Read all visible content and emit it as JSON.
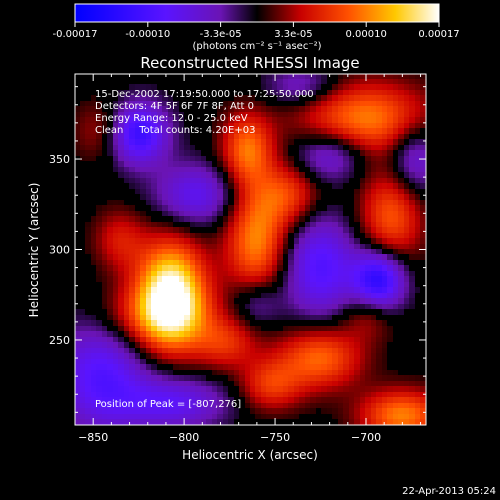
{
  "chart_data": {
    "type": "heatmap",
    "title": "Reconstructed RHESSI Image",
    "xlabel": "Heliocentric X (arcsec)",
    "ylabel": "Heliocentric Y (arcsec)",
    "xlim": [
      -860,
      -667
    ],
    "ylim": [
      203,
      397
    ],
    "xticks": [
      -850,
      -800,
      -750,
      -700
    ],
    "yticks": [
      250,
      300,
      350
    ],
    "colorbar": {
      "tick_labels": [
        "-0.00017",
        "-0.00010",
        "-3.3e-05",
        "3.3e-05",
        "0.00010",
        "0.00017"
      ],
      "unit_label": "(photons cm⁻² s⁻¹ asec⁻²)",
      "range": [
        -0.00017,
        0.00017
      ],
      "colormap": "blue-purple-black-red-orange-yellow-white"
    },
    "annotations": [
      "15-Dec-2002 17:19:50.000 to 17:25:50.000",
      "Detectors: 4F 5F 6F 7F 8F, Att 0",
      "Energy Range: 12.0 - 25.0 keV",
      "Clean     Total counts: 4.20E+03"
    ],
    "peak_label": "Position of Peak = [-807,276]",
    "peak": {
      "x": -807,
      "y": 276
    },
    "grid": false,
    "approx_sources": [
      {
        "x": -807,
        "y": 276,
        "sx": 13,
        "sy": 20,
        "amp": 1.0
      },
      {
        "x": -815,
        "y": 262,
        "sx": 22,
        "sy": 13,
        "amp": 0.42
      },
      {
        "x": -760,
        "y": 305,
        "sx": 12,
        "sy": 22,
        "amp": 0.62
      },
      {
        "x": -765,
        "y": 355,
        "sx": 10,
        "sy": 14,
        "amp": 0.55
      },
      {
        "x": -742,
        "y": 330,
        "sx": 12,
        "sy": 12,
        "amp": 0.4
      },
      {
        "x": -700,
        "y": 372,
        "sx": 25,
        "sy": 14,
        "amp": 0.6
      },
      {
        "x": -686,
        "y": 318,
        "sx": 12,
        "sy": 18,
        "amp": 0.5
      },
      {
        "x": -725,
        "y": 240,
        "sx": 16,
        "sy": 12,
        "amp": 0.55
      },
      {
        "x": -752,
        "y": 225,
        "sx": 12,
        "sy": 10,
        "amp": 0.4
      },
      {
        "x": -840,
        "y": 365,
        "sx": 12,
        "sy": 12,
        "amp": 0.4
      },
      {
        "x": -835,
        "y": 305,
        "sx": 10,
        "sy": 12,
        "amp": 0.3
      },
      {
        "x": -680,
        "y": 208,
        "sx": 16,
        "sy": 10,
        "amp": 0.6
      },
      {
        "x": -698,
        "y": 265,
        "sx": 10,
        "sy": 10,
        "amp": 0.3
      },
      {
        "x": -777,
        "y": 248,
        "sx": 12,
        "sy": 10,
        "amp": 0.35
      },
      {
        "x": -827,
        "y": 364,
        "sx": 12,
        "sy": 12,
        "amp": -0.85
      },
      {
        "x": -693,
        "y": 282,
        "sx": 10,
        "sy": 12,
        "amp": -0.8
      },
      {
        "x": -845,
        "y": 230,
        "sx": 18,
        "sy": 22,
        "amp": -0.55
      },
      {
        "x": -725,
        "y": 290,
        "sx": 14,
        "sy": 20,
        "amp": -0.55
      },
      {
        "x": -793,
        "y": 330,
        "sx": 16,
        "sy": 12,
        "amp": -0.45
      },
      {
        "x": -720,
        "y": 352,
        "sx": 14,
        "sy": 10,
        "amp": -0.4
      },
      {
        "x": -805,
        "y": 215,
        "sx": 20,
        "sy": 10,
        "amp": -0.45
      },
      {
        "x": -760,
        "y": 270,
        "sx": 10,
        "sy": 10,
        "amp": -0.3
      },
      {
        "x": -673,
        "y": 350,
        "sx": 10,
        "sy": 14,
        "amp": -0.4
      },
      {
        "x": -735,
        "y": 390,
        "sx": 14,
        "sy": 8,
        "amp": -0.3
      }
    ]
  },
  "footer": {
    "timestamp": "22-Apr-2013 05:24"
  }
}
